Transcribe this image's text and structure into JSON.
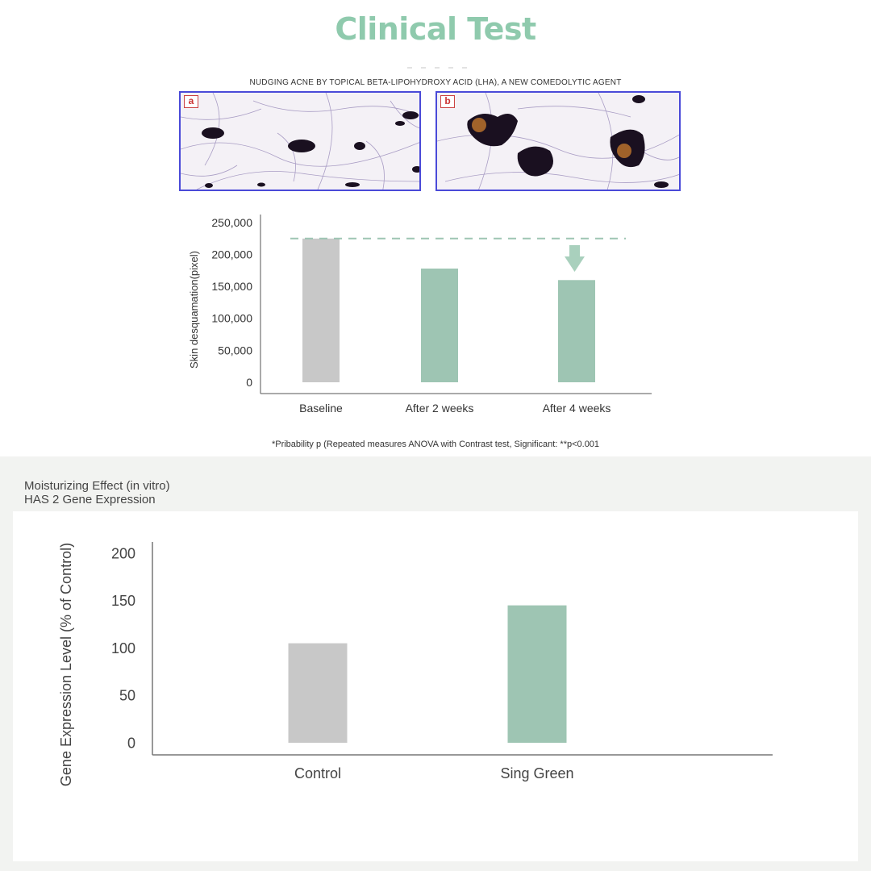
{
  "header": {
    "title": "Clinical Test"
  },
  "study": {
    "title": "NUDGING ACNE BY TOPICAL BETA-LIPOHYDROXY ACID (LHA), A NEW COMEDOLYTIC AGENT",
    "panels": [
      {
        "label": "a"
      },
      {
        "label": "b"
      }
    ]
  },
  "chart_data": [
    {
      "type": "bar",
      "categories": [
        "Baseline",
        "After 2 weeks",
        "After 4 weeks"
      ],
      "values": [
        225000,
        178000,
        160000
      ],
      "ylabel": "Skin desquamation(pixel)",
      "ylim": [
        0,
        250000
      ],
      "yticks": [
        0,
        50000,
        100000,
        150000,
        200000,
        250000
      ],
      "ytick_labels": [
        "0",
        "50,000",
        "100,000",
        "150,000",
        "200,000",
        "250,000"
      ],
      "bar_colors": [
        "#c8c8c8",
        "#9ec5b3",
        "#9ec5b3"
      ],
      "reference_line": 225000,
      "annotation": "down-arrow-icon",
      "grid": false
    },
    {
      "type": "bar",
      "categories": [
        "Control",
        "Sing Green"
      ],
      "values": [
        105,
        145
      ],
      "ylabel": "Gene Expression Level (% of Control)",
      "ylim": [
        0,
        200
      ],
      "yticks": [
        0,
        50,
        100,
        150,
        200
      ],
      "ytick_labels": [
        "0",
        "50",
        "100",
        "150",
        "200"
      ],
      "bar_colors": [
        "#c8c8c8",
        "#9ec5b3"
      ],
      "grid": false
    }
  ],
  "footnote": "*Pribability p (Repeated measures ANOVA with Contrast test, Significant: **p<0.001",
  "moisturizing": {
    "title_line1": "Moisturizing Effect (in vitro)",
    "title_line2": "HAS 2 Gene Expression"
  },
  "colors": {
    "accent": "#8fcaad",
    "bar_green": "#9ec5b3",
    "bar_gray": "#c8c8c8",
    "arrow": "#a9d0bd"
  }
}
